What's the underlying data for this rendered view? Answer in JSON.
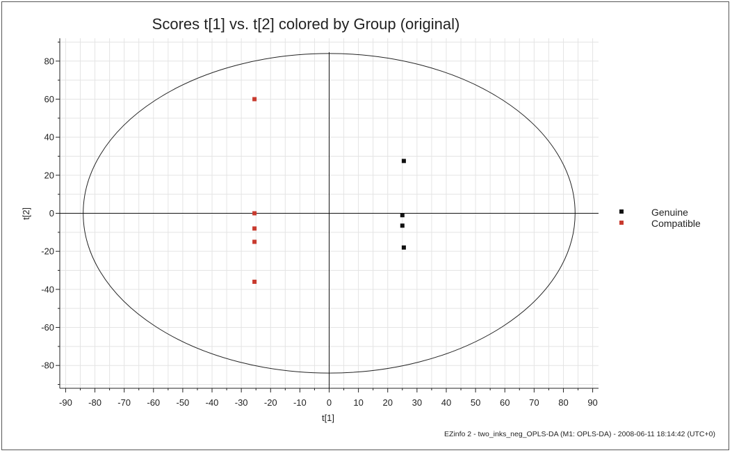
{
  "chart_data": {
    "type": "scatter",
    "title": "Scores t[1] vs. t[2] colored by Group (original)",
    "xlabel": "t[1]",
    "ylabel": "t[2]",
    "xlim": [
      -92,
      92
    ],
    "ylim": [
      -92,
      92
    ],
    "xticks": [
      -90,
      -80,
      -70,
      -60,
      -50,
      -40,
      -30,
      -20,
      -10,
      0,
      10,
      20,
      30,
      40,
      50,
      60,
      70,
      80,
      90
    ],
    "yticks": [
      -80,
      -60,
      -40,
      -20,
      0,
      20,
      40,
      60,
      80
    ],
    "grid": true,
    "legend_position": "right",
    "ellipse": {
      "rx": 84,
      "ry": 84
    },
    "series": [
      {
        "name": "Genuine",
        "color": "#111111",
        "points": [
          [
            25.5,
            27.5
          ],
          [
            25,
            -1
          ],
          [
            25,
            -6.5
          ],
          [
            25.5,
            -18
          ]
        ]
      },
      {
        "name": "Compatible",
        "color": "#c83a2e",
        "points": [
          [
            -25.5,
            60
          ],
          [
            -25.5,
            0
          ],
          [
            -25.5,
            -8
          ],
          [
            -25.5,
            -15
          ],
          [
            -25.5,
            -36
          ]
        ]
      }
    ]
  },
  "footer": "EZinfo 2 - two_inks_neg_OPLS-DA (M1: OPLS-DA) - 2008-06-11 18:14:42 (UTC+0)"
}
